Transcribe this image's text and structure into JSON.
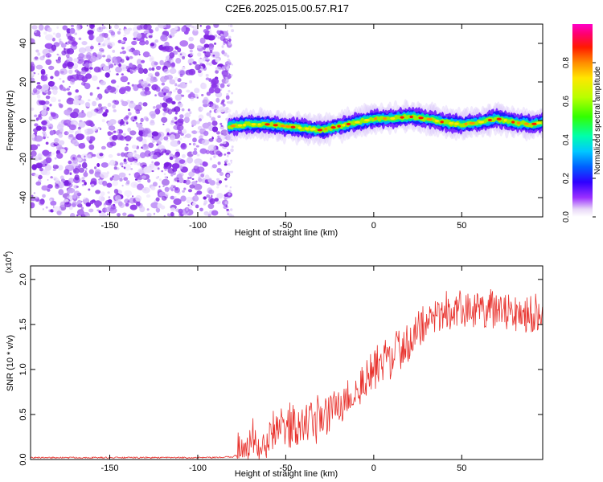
{
  "title": "C2E6.2025.015.00.57.R17",
  "chart_data": [
    {
      "type": "heatmap",
      "xlabel": "Height of straight line (km)",
      "ylabel": "Frequency (Hz)",
      "xlim": [
        -195,
        96
      ],
      "ylim": [
        -50,
        50
      ],
      "x_ticks": [
        -150,
        -100,
        -50,
        0,
        50
      ],
      "y_ticks": [
        -40,
        -20,
        0,
        20,
        40
      ],
      "noise_region_x": [
        -195,
        -82
      ],
      "ridge_x": [
        -82,
        -70,
        -60,
        -50,
        -40,
        -30,
        -20,
        -10,
        0,
        10,
        20,
        30,
        40,
        50,
        60,
        70,
        80,
        90,
        96
      ],
      "ridge_y": [
        -3,
        -2,
        -2,
        -3,
        -4,
        -5,
        -3,
        -1,
        1,
        1,
        2,
        1,
        -1,
        -2,
        -1,
        1,
        -1,
        -2,
        -1
      ],
      "colorbar": {
        "label": "Normalized spectral amplitude",
        "ticks": [
          0.0,
          0.2,
          0.4,
          0.6,
          0.8
        ],
        "range": [
          0,
          1
        ]
      },
      "grid": false
    },
    {
      "type": "line",
      "xlabel": "Height of straight line (km)",
      "ylabel": "SNR (10 * v/v)",
      "multiplier_label": "(x10",
      "multiplier_exp": "4",
      "multiplier_close": ")",
      "xlim": [
        -195,
        96
      ],
      "ylim": [
        0,
        2.15
      ],
      "x_ticks": [
        -150,
        -100,
        -50,
        0,
        50
      ],
      "y_ticks": [
        0.0,
        0.5,
        1.0,
        1.5,
        2.0
      ],
      "series": [
        {
          "color": "#e8312c",
          "x": [
            -195,
            -90,
            -80,
            -75,
            -70,
            -65,
            -60,
            -55,
            -50,
            -45,
            -40,
            -35,
            -30,
            -25,
            -20,
            -15,
            -10,
            -5,
            0,
            5,
            10,
            15,
            20,
            25,
            30,
            35,
            40,
            50,
            60,
            70,
            80,
            90,
            96
          ],
          "y": [
            0.02,
            0.02,
            0.03,
            0.08,
            0.15,
            0.2,
            0.25,
            0.3,
            0.35,
            0.33,
            0.35,
            0.4,
            0.45,
            0.5,
            0.58,
            0.65,
            0.75,
            0.85,
            0.95,
            1.05,
            1.15,
            1.2,
            1.3,
            1.45,
            1.55,
            1.6,
            1.62,
            1.65,
            1.65,
            1.63,
            1.62,
            1.6,
            1.6
          ]
        }
      ],
      "grid": false
    }
  ]
}
